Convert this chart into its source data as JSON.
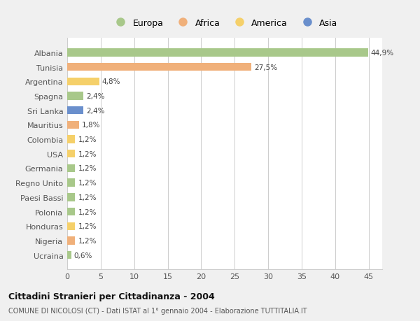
{
  "categories": [
    "Albania",
    "Tunisia",
    "Argentina",
    "Spagna",
    "Sri Lanka",
    "Mauritius",
    "Colombia",
    "USA",
    "Germania",
    "Regno Unito",
    "Paesi Bassi",
    "Polonia",
    "Honduras",
    "Nigeria",
    "Ucraina"
  ],
  "values": [
    44.9,
    27.5,
    4.8,
    2.4,
    2.4,
    1.8,
    1.2,
    1.2,
    1.2,
    1.2,
    1.2,
    1.2,
    1.2,
    1.2,
    0.6
  ],
  "labels": [
    "44,9%",
    "27,5%",
    "4,8%",
    "2,4%",
    "2,4%",
    "1,8%",
    "1,2%",
    "1,2%",
    "1,2%",
    "1,2%",
    "1,2%",
    "1,2%",
    "1,2%",
    "1,2%",
    "0,6%"
  ],
  "colors": [
    "#a8c88a",
    "#f0b07a",
    "#f5d06a",
    "#a8c88a",
    "#6a8fcc",
    "#f0b07a",
    "#f5d06a",
    "#f5d06a",
    "#a8c88a",
    "#a8c88a",
    "#a8c88a",
    "#a8c88a",
    "#f5d06a",
    "#f0b07a",
    "#a8c88a"
  ],
  "legend_labels": [
    "Europa",
    "Africa",
    "America",
    "Asia"
  ],
  "legend_colors": [
    "#a8c88a",
    "#f0b07a",
    "#f5d06a",
    "#6a8fcc"
  ],
  "title": "Cittadini Stranieri per Cittadinanza - 2004",
  "subtitle": "COMUNE DI NICOLOSI (CT) - Dati ISTAT al 1° gennaio 2004 - Elaborazione TUTTITALIA.IT",
  "xlim": [
    0,
    47
  ],
  "xticks": [
    0,
    5,
    10,
    15,
    20,
    25,
    30,
    35,
    40,
    45
  ],
  "bg_color": "#f0f0f0",
  "plot_bg_color": "#ffffff",
  "grid_color": "#cccccc"
}
